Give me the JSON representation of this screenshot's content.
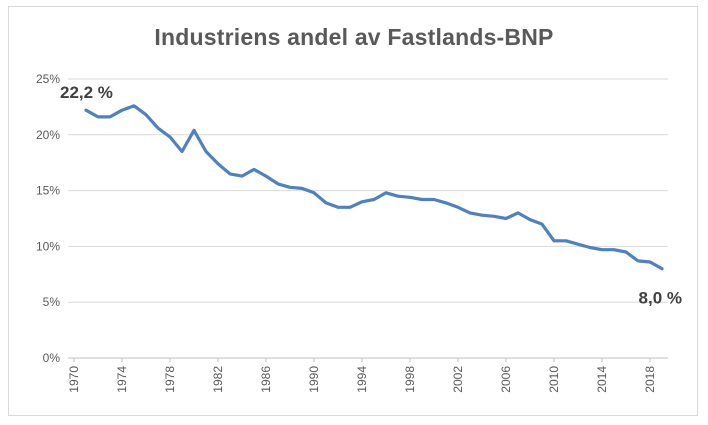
{
  "chart_data": {
    "type": "line",
    "title": "Industriens andel av Fastlands-BNP",
    "xlabel": "",
    "ylabel": "",
    "xlim": [
      1970,
      2019
    ],
    "ylim": [
      0,
      25
    ],
    "y_ticks": [
      "0%",
      "5%",
      "10%",
      "15%",
      "20%",
      "25%"
    ],
    "y_tick_values": [
      0,
      5,
      10,
      15,
      20,
      25
    ],
    "x_ticks": [
      "1970",
      "1974",
      "1978",
      "1982",
      "1986",
      "1990",
      "1994",
      "1998",
      "2002",
      "2006",
      "2010",
      "2014",
      "2018"
    ],
    "x_tick_values": [
      1970,
      1974,
      1978,
      1982,
      1986,
      1990,
      1994,
      1998,
      2002,
      2006,
      2010,
      2014,
      2018
    ],
    "grid": "horizontal",
    "legend": "none",
    "series": [
      {
        "color": "#4f81bd",
        "x": [
          1971,
          1972,
          1973,
          1974,
          1975,
          1976,
          1977,
          1978,
          1979,
          1980,
          1981,
          1982,
          1983,
          1984,
          1985,
          1986,
          1987,
          1988,
          1989,
          1990,
          1991,
          1992,
          1993,
          1994,
          1995,
          1996,
          1997,
          1998,
          1999,
          2000,
          2001,
          2002,
          2003,
          2004,
          2005,
          2006,
          2007,
          2008,
          2009,
          2010,
          2011,
          2012,
          2013,
          2014,
          2015,
          2016,
          2017,
          2018,
          2019
        ],
        "values": [
          22.2,
          21.6,
          21.6,
          22.2,
          22.6,
          21.8,
          20.6,
          19.8,
          18.5,
          20.4,
          18.5,
          17.4,
          16.5,
          16.3,
          16.9,
          16.3,
          15.6,
          15.3,
          15.2,
          14.8,
          13.9,
          13.5,
          13.5,
          14.0,
          14.2,
          14.8,
          14.5,
          14.4,
          14.2,
          14.2,
          13.9,
          13.5,
          13.0,
          12.8,
          12.7,
          12.5,
          13.0,
          12.4,
          12.0,
          10.5,
          10.5,
          10.2,
          9.9,
          9.7,
          9.7,
          9.5,
          8.7,
          8.6,
          8.0
        ]
      }
    ],
    "annotations": [
      {
        "text": "22,2 %",
        "x": 1971,
        "y": 22.2,
        "anchor": "above-left"
      },
      {
        "text": "8,0 %",
        "x": 2019,
        "y": 8.0,
        "anchor": "below-right"
      }
    ]
  }
}
